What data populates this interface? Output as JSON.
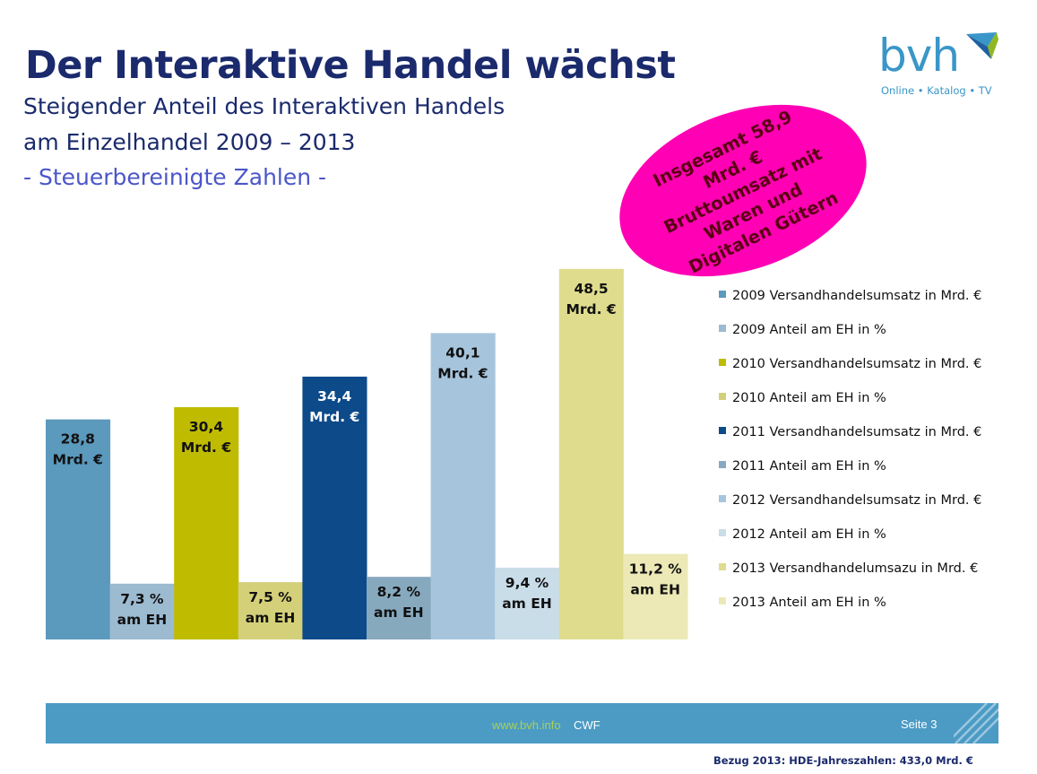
{
  "header": {
    "title": "Der Interaktive Handel wächst",
    "subtitle_line1": "Steigender Anteil des Interaktiven Handels",
    "subtitle_line2": "am Einzelhandel 2009 – 2013",
    "subtitle_line3": "- Steuerbereinigte Zahlen -"
  },
  "logo": {
    "text": "bvh",
    "tagline": "Online • Katalog • TV"
  },
  "callout": {
    "text": "Insgesamt 58,9 Mrd. € Bruttoumsatz mit Waren und Digitalen Gütern",
    "color": "#ff00b4"
  },
  "chart_data": {
    "type": "bar",
    "title": "",
    "xlabel": "",
    "ylabel": "",
    "ylim": [
      0,
      52
    ],
    "grid": false,
    "legend_position": "right",
    "series": [
      {
        "name": "2009 Versandhandelsumsatz in Mrd. €",
        "value": 28.8,
        "label_line1": "28,8",
        "label_line2": "Mrd. €",
        "color": "#5b99bd",
        "label_color": "#111111"
      },
      {
        "name": "2009 Anteil am EH in %",
        "value": 7.3,
        "label_line1": "7,3 %",
        "label_line2": "am EH",
        "color": "#9cbad0",
        "label_color": "#111111"
      },
      {
        "name": "2010 Versandhandelsumsatz in Mrd. €",
        "value": 30.4,
        "label_line1": "30,4",
        "label_line2": "Mrd. €",
        "color": "#bfbb00",
        "label_color": "#111111"
      },
      {
        "name": "2010 Anteil am EH in %",
        "value": 7.5,
        "label_line1": "7,5 %",
        "label_line2": "am EH",
        "color": "#d4d07a",
        "label_color": "#111111"
      },
      {
        "name": "2011 Versandhandelsumsatz in Mrd. €",
        "value": 34.4,
        "label_line1": "34,4",
        "label_line2": "Mrd. €",
        "color": "#0d4a8a",
        "label_color": "#ffffff"
      },
      {
        "name": "2011 Anteil am EH in %",
        "value": 8.2,
        "label_line1": "8,2 %",
        "label_line2": "am EH",
        "color": "#87a9be",
        "label_color": "#111111"
      },
      {
        "name": "2012 Versandhandelsumsatz in Mrd. €",
        "value": 40.1,
        "label_line1": "40,1",
        "label_line2": "Mrd. €",
        "color": "#a6c5dd",
        "label_color": "#111111"
      },
      {
        "name": "2012 Anteil am EH in %",
        "value": 9.4,
        "label_line1": "9,4 %",
        "label_line2": "am EH",
        "color": "#c9dde9",
        "label_color": "#111111"
      },
      {
        "name": "2013 Versandhandelumsazu in Mrd. €",
        "value": 48.5,
        "label_line1": "48,5",
        "label_line2": "Mrd. €",
        "color": "#dfdc8e",
        "label_color": "#111111"
      },
      {
        "name": "2013 Anteil am EH in %",
        "value": 11.2,
        "label_line1": "11,2 %",
        "label_line2": "am EH",
        "color": "#ece9b6",
        "label_color": "#111111"
      }
    ]
  },
  "footer": {
    "url": "www.bvh.info",
    "brand": "CWF",
    "page": "Seite 3",
    "reference": "Bezug 2013: HDE-Jahreszahlen: 433,0 Mrd. €",
    "bar_color": "#4b9bc5"
  }
}
